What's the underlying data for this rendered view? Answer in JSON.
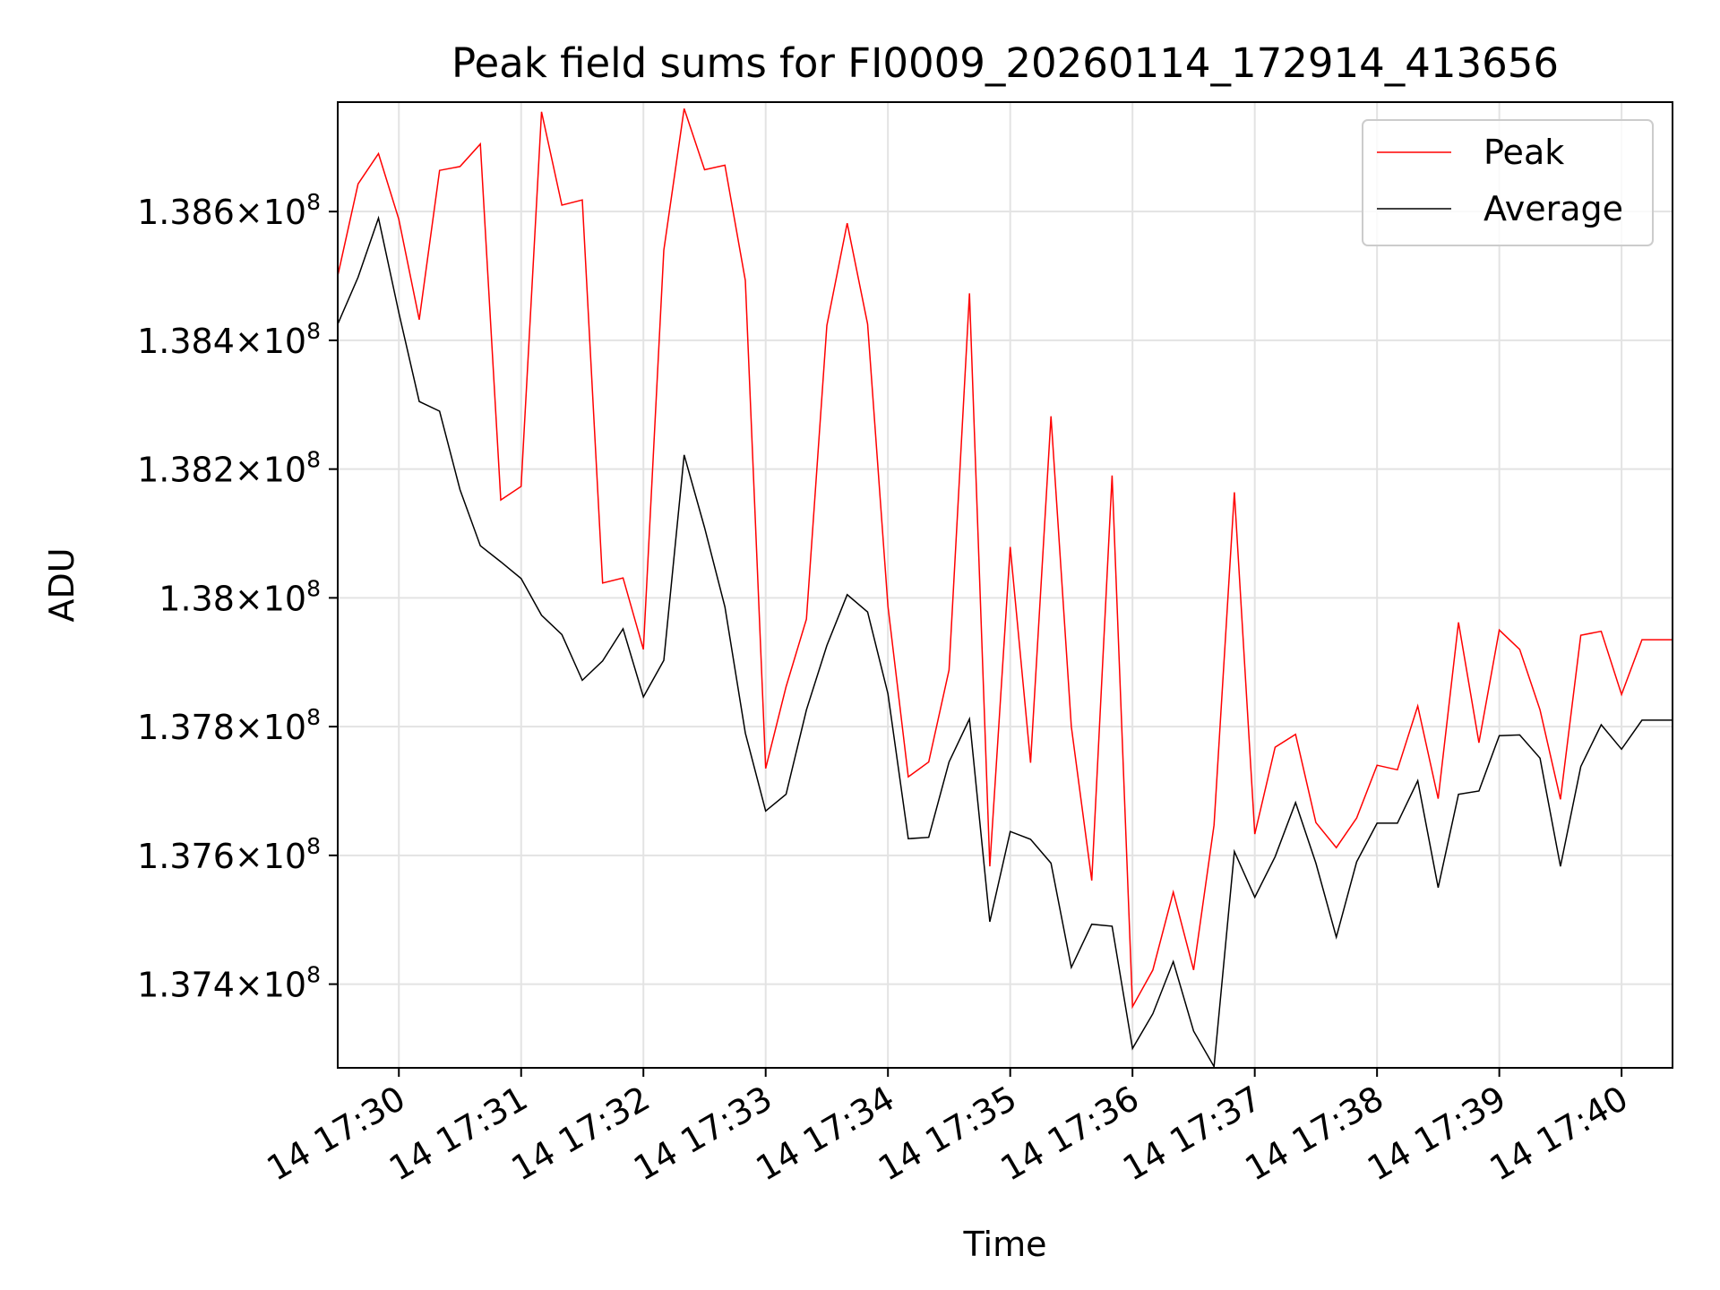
{
  "chart_data": {
    "type": "line",
    "title": "Peak field sums for FI0009_20260114_172914_413656",
    "xlabel": "Time",
    "ylabel": "ADU",
    "x_tick_labels": [
      "14 17:30",
      "14 17:31",
      "14 17:32",
      "14 17:33",
      "14 17:34",
      "14 17:35",
      "14 17:36",
      "14 17:37",
      "14 17:38",
      "14 17:39",
      "14 17:40"
    ],
    "y_ticks": [
      {
        "value": 137400000,
        "mantissa": "1.374",
        "exponent": "8"
      },
      {
        "value": 137600000,
        "mantissa": "1.376",
        "exponent": "8"
      },
      {
        "value": 137800000,
        "mantissa": "1.378",
        "exponent": "8"
      },
      {
        "value": 138000000,
        "mantissa": "1.38",
        "exponent": "8"
      },
      {
        "value": 138200000,
        "mantissa": "1.382",
        "exponent": "8"
      },
      {
        "value": 138400000,
        "mantissa": "1.384",
        "exponent": "8"
      },
      {
        "value": 138600000,
        "mantissa": "1.386",
        "exponent": "8"
      }
    ],
    "xlim": [
      "2026-01-14 17:29:30",
      "2026-01-14 17:40:25"
    ],
    "ylim": [
      137270000,
      138770000
    ],
    "grid": true,
    "legend_position": "upper right",
    "x": [
      "17:29:30",
      "17:29:40",
      "17:29:50",
      "17:30:00",
      "17:30:10",
      "17:30:20",
      "17:30:30",
      "17:30:40",
      "17:30:50",
      "17:31:00",
      "17:31:10",
      "17:31:20",
      "17:31:30",
      "17:31:40",
      "17:31:50",
      "17:32:00",
      "17:32:10",
      "17:32:20",
      "17:32:30",
      "17:32:40",
      "17:32:50",
      "17:33:00",
      "17:33:10",
      "17:33:20",
      "17:33:30",
      "17:33:40",
      "17:33:50",
      "17:34:00",
      "17:34:10",
      "17:34:20",
      "17:34:30",
      "17:34:40",
      "17:34:50",
      "17:35:00",
      "17:35:10",
      "17:35:20",
      "17:35:30",
      "17:35:40",
      "17:35:50",
      "17:36:00",
      "17:36:10",
      "17:36:20",
      "17:36:30",
      "17:36:40",
      "17:36:50",
      "17:37:00",
      "17:37:10",
      "17:37:20",
      "17:37:30",
      "17:37:40",
      "17:37:50",
      "17:38:00",
      "17:38:10",
      "17:38:20",
      "17:38:30",
      "17:38:40",
      "17:38:50",
      "17:39:00",
      "17:39:10",
      "17:39:20",
      "17:39:30",
      "17:39:40",
      "17:39:50",
      "17:40:00",
      "17:40:10",
      "17:40:20",
      "17:40:25"
    ],
    "series": [
      {
        "name": "Peak",
        "color": "#ff0000",
        "values": [
          138500000,
          138643000,
          138690000,
          138588000,
          138432000,
          138664000,
          138670000,
          138705000,
          138152000,
          138173000,
          138755000,
          138610000,
          138618000,
          138023000,
          138031000,
          137920000,
          138540000,
          138760000,
          138665000,
          138672000,
          138493000,
          137735000,
          137862000,
          137967000,
          138423000,
          138582000,
          138425000,
          137987000,
          137722000,
          137745000,
          137888000,
          138473000,
          137583000,
          138079000,
          137744000,
          138282000,
          137800000,
          137561000,
          138190000,
          137365000,
          137422000,
          137543000,
          137422000,
          137647000,
          138164000,
          137633000,
          137768000,
          137788000,
          137651000,
          137612000,
          137658000,
          137740000,
          137733000,
          137832000,
          137688000,
          137962000,
          137775000,
          137950000,
          137920000,
          137826000,
          137687000,
          137942000,
          137948000,
          137850000,
          137935000,
          137935000,
          137935000
        ]
      },
      {
        "name": "Average",
        "color": "#000000",
        "values": [
          138425000,
          138498000,
          138590000,
          138443000,
          138305000,
          138290000,
          138168000,
          138081000,
          138056000,
          138030000,
          137973000,
          137943000,
          137872000,
          137902000,
          137952000,
          137846000,
          137903000,
          138222000,
          138109000,
          137986000,
          137790000,
          137669000,
          137695000,
          137826000,
          137926000,
          138005000,
          137978000,
          137851000,
          137626000,
          137628000,
          137745000,
          137812000,
          137497000,
          137637000,
          137625000,
          137588000,
          137426000,
          137493000,
          137490000,
          137300000,
          137354000,
          137435000,
          137327000,
          137272000,
          137606000,
          137535000,
          137598000,
          137682000,
          137588000,
          137473000,
          137590000,
          137650000,
          137650000,
          137716000,
          137550000,
          137695000,
          137700000,
          137786000,
          137787000,
          137751000,
          137583000,
          137738000,
          137803000,
          137765000,
          137810000,
          137810000,
          137810000
        ]
      }
    ]
  }
}
